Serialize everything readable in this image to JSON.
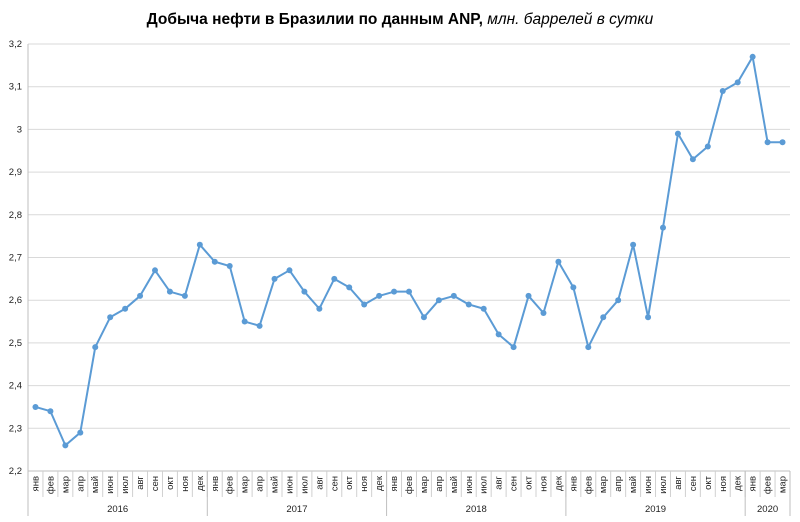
{
  "chart_data": {
    "type": "line",
    "title": "Добыча нефти в Бразилии по данным ANP,",
    "subtitle": "млн. баррелей в сутки",
    "xlabel": "",
    "ylabel": "",
    "ylim": [
      2.2,
      3.2
    ],
    "yticks": [
      "2,2",
      "2,3",
      "2,4",
      "2,5",
      "2,6",
      "2,7",
      "2,8",
      "2,9",
      "3",
      "3,1",
      "3,2"
    ],
    "grid": true,
    "legend": "none",
    "line_color": "#5b9bd5",
    "grid_color": "#d9d9d9",
    "months": [
      "янв",
      "фев",
      "мар",
      "апр",
      "май",
      "июн",
      "июл",
      "авг",
      "сен",
      "окт",
      "ноя",
      "дек"
    ],
    "years": [
      {
        "label": "2016",
        "count": 12
      },
      {
        "label": "2017",
        "count": 12
      },
      {
        "label": "2018",
        "count": 12
      },
      {
        "label": "2019",
        "count": 12
      },
      {
        "label": "2020",
        "count": 3
      }
    ],
    "x": [
      "янв",
      "фев",
      "мар",
      "апр",
      "май",
      "июн",
      "июл",
      "авг",
      "сен",
      "окт",
      "ноя",
      "дек",
      "янв",
      "фев",
      "мар",
      "апр",
      "май",
      "июн",
      "июл",
      "авг",
      "сен",
      "окт",
      "ноя",
      "дек",
      "янв",
      "фев",
      "мар",
      "апр",
      "май",
      "июн",
      "июл",
      "авг",
      "сен",
      "окт",
      "ноя",
      "дек",
      "янв",
      "фев",
      "мар",
      "апр",
      "май",
      "июн",
      "июл",
      "авг",
      "сен",
      "окт",
      "ноя",
      "дек",
      "янв",
      "фев",
      "мар"
    ],
    "values": [
      2.35,
      2.34,
      2.26,
      2.29,
      2.49,
      2.56,
      2.58,
      2.61,
      2.67,
      2.62,
      2.61,
      2.73,
      2.69,
      2.68,
      2.55,
      2.54,
      2.65,
      2.67,
      2.62,
      2.58,
      2.65,
      2.63,
      2.59,
      2.61,
      2.62,
      2.62,
      2.56,
      2.6,
      2.61,
      2.59,
      2.58,
      2.52,
      2.49,
      2.61,
      2.57,
      2.69,
      2.63,
      2.49,
      2.56,
      2.6,
      2.73,
      2.56,
      2.77,
      2.99,
      2.93,
      2.96,
      3.09,
      3.11,
      3.17,
      2.97,
      2.97
    ]
  }
}
